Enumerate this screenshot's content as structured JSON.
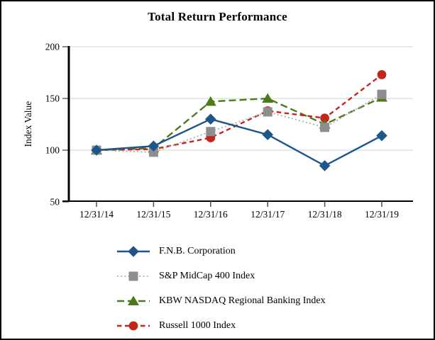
{
  "chart_data": {
    "type": "line",
    "title": "Total Return Performance",
    "xlabel": "",
    "ylabel": "Index Value",
    "ylim": [
      50,
      200
    ],
    "yticks": [
      50,
      100,
      150,
      200
    ],
    "grid": "horizontal",
    "legend_position": "bottom-left",
    "categories": [
      "12/31/14",
      "12/31/15",
      "12/31/16",
      "12/31/17",
      "12/31/18",
      "12/31/19"
    ],
    "series": [
      {
        "name": "F.N.B. Corporation",
        "values": [
          100,
          104,
          130,
          115,
          85,
          114
        ],
        "color": "#1D5689",
        "line_color": "#1D5689",
        "marker": "diamond",
        "line_style": "solid"
      },
      {
        "name": "S&P MidCap 400 Index",
        "values": [
          100,
          98,
          118,
          137,
          122,
          154
        ],
        "color": "#8E8E8E",
        "line_color": "#ADADAD",
        "marker": "square",
        "line_style": "dotted"
      },
      {
        "name": "KBW NASDAQ Regional Banking Index",
        "values": [
          100,
          102,
          147,
          150,
          125,
          151
        ],
        "color": "#4E7A1E",
        "line_color": "#4E7A1E",
        "marker": "triangle",
        "line_style": "dashed"
      },
      {
        "name": "Russell 1000 Index",
        "values": [
          100,
          101,
          112,
          138,
          131,
          173
        ],
        "color": "#C3271B",
        "line_color": "#C3271B",
        "marker": "circle",
        "line_style": "dashed-short"
      }
    ]
  }
}
